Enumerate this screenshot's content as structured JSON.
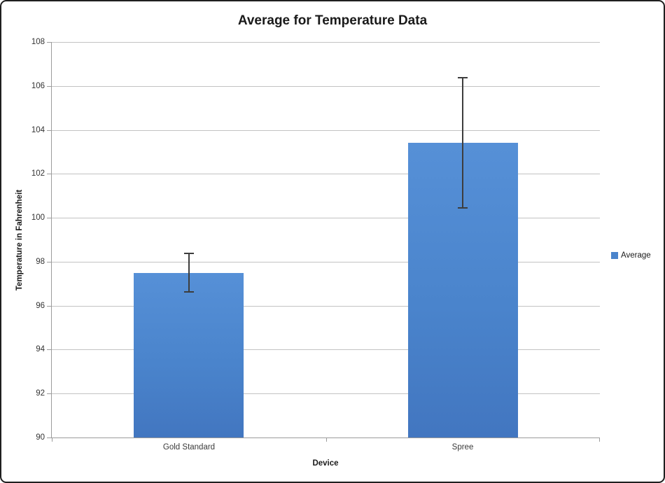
{
  "chart_data": {
    "type": "bar",
    "title": "Average for Temperature Data",
    "xlabel": "Device",
    "ylabel": "Temperature in Fahrenheit",
    "categories": [
      "Gold Standard",
      "Spree"
    ],
    "series": [
      {
        "name": "Average",
        "values": [
          97.5,
          103.4
        ],
        "error_low": [
          96.6,
          100.4
        ],
        "error_high": [
          98.4,
          106.4
        ]
      }
    ],
    "ylim": [
      90,
      108
    ],
    "yticks": [
      90,
      92,
      94,
      96,
      98,
      100,
      102,
      104,
      106,
      108
    ],
    "grid": true,
    "legend_position": "right"
  },
  "legend": {
    "items": [
      {
        "label": "Average",
        "color": "#4a84cc"
      }
    ]
  },
  "colors": {
    "bar_gradient_top": "#5690d7",
    "bar_gradient_bottom": "#4276c0",
    "bar_solid": "#4a84cc",
    "gridline": "#c3c3c3",
    "axis_line": "#9b9b9b",
    "error_bar": "#3d3d3d",
    "tick_text": "#333333",
    "title_text": "#1a1a1a"
  }
}
